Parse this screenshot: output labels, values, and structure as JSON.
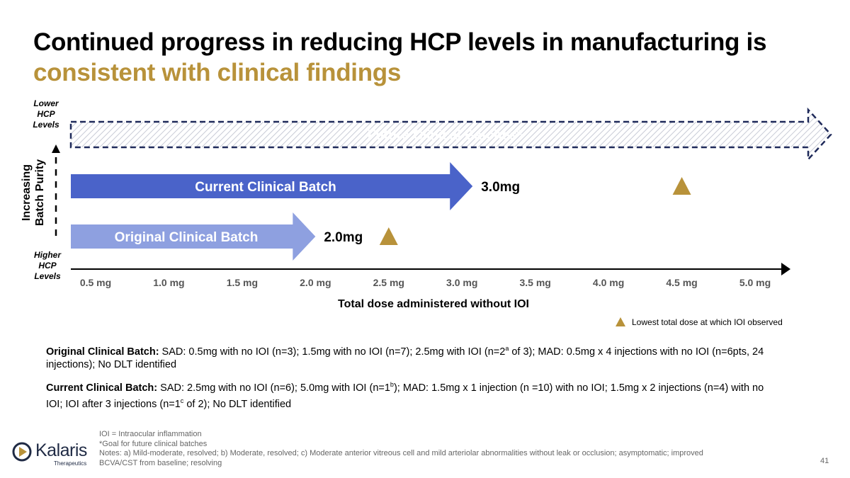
{
  "title": {
    "line1": "Continued progress in reducing HCP levels in manufacturing is",
    "line2": "consistent with clinical findings"
  },
  "colors": {
    "accent_gold": "#b8923a",
    "current_batch": "#4a63c9",
    "original_batch": "#8ea0e0",
    "future_border": "#1f2a5a"
  },
  "chart_data": {
    "type": "bar",
    "orientation": "horizontal",
    "xlabel": "Total dose administered without IOI",
    "ylabel": "Increasing Batch Purity",
    "x_ticks": [
      "0.5 mg",
      "1.0 mg",
      "1.5 mg",
      "2.0 mg",
      "2.5 mg",
      "3.0 mg",
      "3.5 mg",
      "4.0 mg",
      "4.5 mg",
      "5.0 mg"
    ],
    "xlim": [
      0.5,
      5.0
    ],
    "y_top_label": "Lower HCP Levels",
    "y_bottom_label": "Higher HCP Levels",
    "series": [
      {
        "name": "Future Clinical Batches*",
        "value": 5.5,
        "style": "dashed-hatched",
        "value_label": ""
      },
      {
        "name": "Current Clinical Batch",
        "value": 3.0,
        "style": "solid",
        "value_label": "3.0mg",
        "ioi_marker": 4.5
      },
      {
        "name": "Original Clinical Batch",
        "value": 2.0,
        "style": "solid",
        "value_label": "2.0mg",
        "ioi_marker": 2.5
      }
    ],
    "legend": {
      "marker": "triangle",
      "label": "Lowest total dose at which IOI observed",
      "placement": "bottom-right"
    }
  },
  "notes": {
    "original_head": "Original Clinical Batch:",
    "original_p1": " SAD: 0.5mg with no IOI (n=3); 1.5mg with no IOI (n=7); 2.5mg with IOI (n=2",
    "original_sup": "a",
    "original_p2": " of 3); MAD: 0.5mg x 4 injections with no IOI (n=6pts, 24 injections); No DLT identified",
    "current_head": "Current Clinical Batch:",
    "current_p1": " SAD: 2.5mg with no IOI (n=6); 5.0mg with IOI (n=1",
    "current_sup1": "b",
    "current_p2": "); MAD: 1.5mg x 1 injection (n =10) with no IOI; 1.5mg x 2 injections (n=4) with no IOI; IOI after 3 injections (n=1",
    "current_sup2": "c",
    "current_p3": " of 2); No DLT identified"
  },
  "footnotes": {
    "line1": "IOI = Intraocular inflammation",
    "line2": "*Goal for future clinical batches",
    "line3": "Notes: a) Mild-moderate, resolved; b) Moderate, resolved; c) Moderate anterior vitreous cell and mild arteriolar abnormalities without leak or occlusion; asymptomatic; improved BCVA/CST from baseline; resolving"
  },
  "logo": {
    "word": "Kalaris",
    "sub": "Therapeutics"
  },
  "page_number": "41"
}
